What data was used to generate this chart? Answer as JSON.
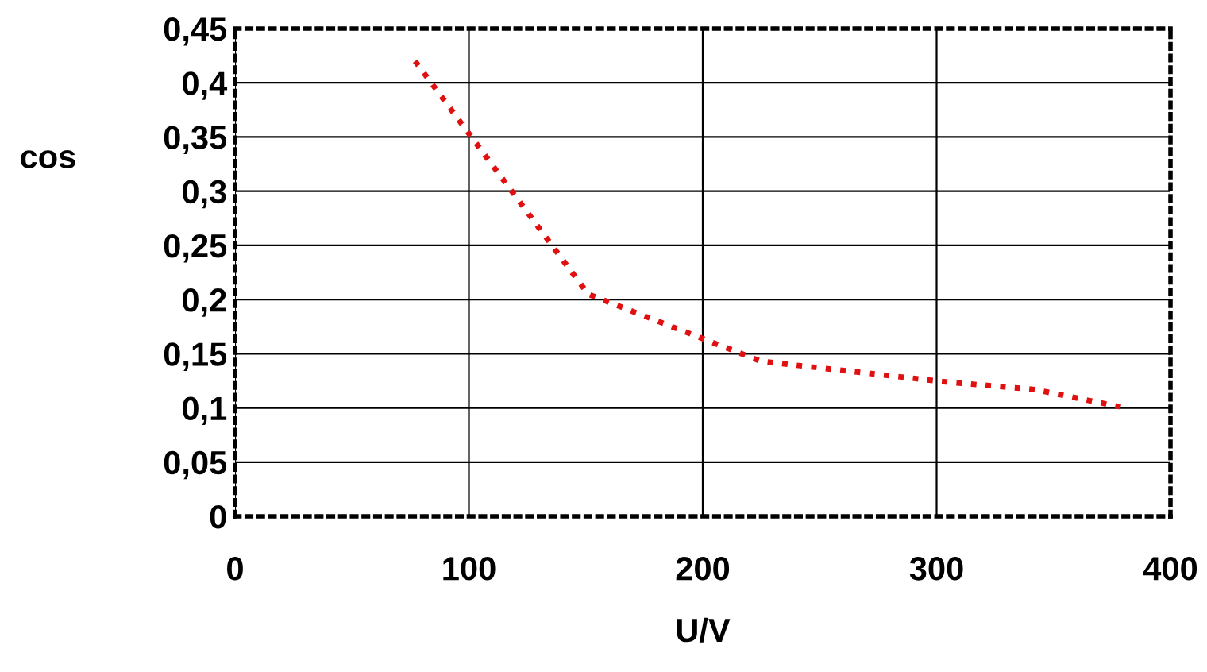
{
  "chart_data": {
    "type": "line",
    "xlabel": "U/V",
    "ylabel": "cos",
    "x": [
      77,
      151,
      225,
      304,
      342,
      381
    ],
    "series": [
      {
        "color": "#e01010",
        "values": [
          0.42,
          0.205,
          0.143,
          0.124,
          0.117,
          0.1
        ]
      }
    ],
    "xlim": [
      0,
      400
    ],
    "xticks": [
      0,
      100,
      200,
      300,
      400
    ],
    "ylim": [
      0,
      0.45
    ],
    "yticks": [
      {
        "value": 0,
        "label": "0"
      },
      {
        "value": 0.05,
        "label": "0,05"
      },
      {
        "value": 0.1,
        "label": "0,1"
      },
      {
        "value": 0.15,
        "label": "0,15"
      },
      {
        "value": 0.2,
        "label": "0,2"
      },
      {
        "value": 0.25,
        "label": "0,25"
      },
      {
        "value": 0.3,
        "label": "0,3"
      },
      {
        "value": 0.35,
        "label": "0,35"
      },
      {
        "value": 0.4,
        "label": "0,4"
      },
      {
        "value": 0.45,
        "label": "0,45"
      }
    ],
    "grid": true,
    "line_style": "dotted"
  }
}
